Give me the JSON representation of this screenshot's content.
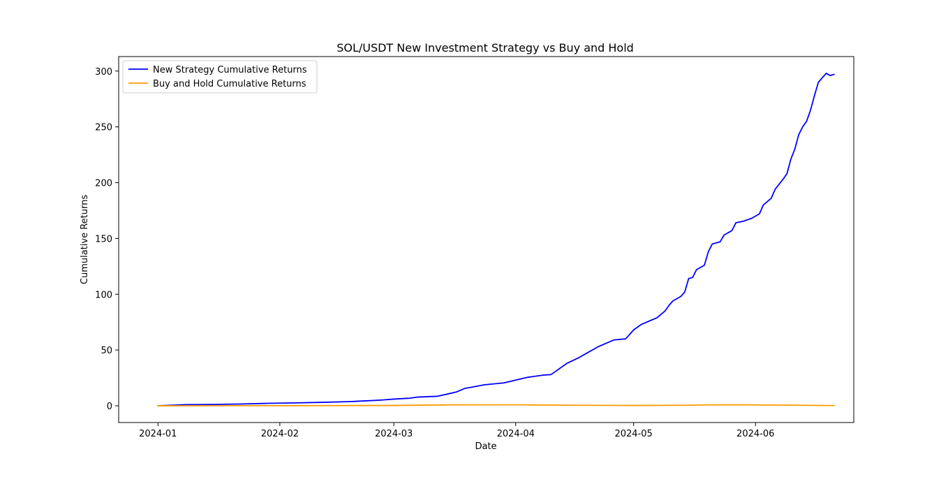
{
  "chart_data": {
    "type": "line",
    "title": "SOL/USDT New Investment Strategy vs Buy and Hold",
    "xlabel": "Date",
    "ylabel": "Cumulative Returns",
    "x_axis": {
      "type": "date",
      "range": [
        "2023-12-22",
        "2024-06-26"
      ],
      "ticks": [
        "2024-01-01",
        "2024-02-01",
        "2024-03-01",
        "2024-04-01",
        "2024-05-01",
        "2024-06-01"
      ],
      "tick_labels": [
        "2024-01",
        "2024-02",
        "2024-03",
        "2024-04",
        "2024-05",
        "2024-06"
      ]
    },
    "y_axis": {
      "range": [
        -15,
        313
      ],
      "ticks": [
        0,
        50,
        100,
        150,
        200,
        250,
        300
      ],
      "tick_labels": [
        "0",
        "50",
        "100",
        "150",
        "200",
        "250",
        "300"
      ]
    },
    "grid": false,
    "legend_position": "top-left",
    "colors": {
      "New Strategy Cumulative Returns": "#0000ff",
      "Buy and Hold Cumulative Returns": "#ff9900"
    },
    "series": [
      {
        "name": "New Strategy Cumulative Returns",
        "color": "#0000ff",
        "points": [
          [
            "2024-01-01",
            0.0
          ],
          [
            "2024-01-08",
            1.0
          ],
          [
            "2024-01-15",
            1.2
          ],
          [
            "2024-01-22",
            1.6
          ],
          [
            "2024-01-29",
            2.2
          ],
          [
            "2024-02-05",
            2.6
          ],
          [
            "2024-02-12",
            3.1
          ],
          [
            "2024-02-19",
            3.8
          ],
          [
            "2024-02-24",
            4.6
          ],
          [
            "2024-02-27",
            5.2
          ],
          [
            "2024-03-01",
            6.0
          ],
          [
            "2024-03-05",
            6.8
          ],
          [
            "2024-03-07",
            7.8
          ],
          [
            "2024-03-12",
            8.5
          ],
          [
            "2024-03-14",
            10.0
          ],
          [
            "2024-03-17",
            12.5
          ],
          [
            "2024-03-19",
            15.5
          ],
          [
            "2024-03-22",
            17.5
          ],
          [
            "2024-03-24",
            18.8
          ],
          [
            "2024-03-29",
            20.5
          ],
          [
            "2024-04-01",
            23.0
          ],
          [
            "2024-04-04",
            25.5
          ],
          [
            "2024-04-08",
            27.5
          ],
          [
            "2024-04-10",
            28.0
          ],
          [
            "2024-04-14",
            38.0
          ],
          [
            "2024-04-17",
            43.0
          ],
          [
            "2024-04-19",
            47.0
          ],
          [
            "2024-04-22",
            53.0
          ],
          [
            "2024-04-24",
            56.0
          ],
          [
            "2024-04-26",
            59.0
          ],
          [
            "2024-04-29",
            60.0
          ],
          [
            "2024-05-01",
            68.0
          ],
          [
            "2024-05-03",
            73.0
          ],
          [
            "2024-05-05",
            76.0
          ],
          [
            "2024-05-07",
            79.0
          ],
          [
            "2024-05-09",
            85.0
          ],
          [
            "2024-05-10",
            90.0
          ],
          [
            "2024-05-11",
            94.0
          ],
          [
            "2024-05-13",
            98.0
          ],
          [
            "2024-05-14",
            102.0
          ],
          [
            "2024-05-15",
            114.0
          ],
          [
            "2024-05-16",
            115.0
          ],
          [
            "2024-05-17",
            122.0
          ],
          [
            "2024-05-19",
            126.0
          ],
          [
            "2024-05-20",
            138.0
          ],
          [
            "2024-05-21",
            145.0
          ],
          [
            "2024-05-23",
            147.0
          ],
          [
            "2024-05-24",
            153.0
          ],
          [
            "2024-05-26",
            157.0
          ],
          [
            "2024-05-27",
            164.0
          ],
          [
            "2024-05-29",
            165.5
          ],
          [
            "2024-05-31",
            168.0
          ],
          [
            "2024-06-02",
            172.0
          ],
          [
            "2024-06-03",
            180.0
          ],
          [
            "2024-06-05",
            186.0
          ],
          [
            "2024-06-06",
            194.0
          ],
          [
            "2024-06-08",
            203.0
          ],
          [
            "2024-06-09",
            208.0
          ],
          [
            "2024-06-10",
            221.0
          ],
          [
            "2024-06-11",
            230.0
          ],
          [
            "2024-06-12",
            243.0
          ],
          [
            "2024-06-13",
            250.0
          ],
          [
            "2024-06-14",
            255.0
          ],
          [
            "2024-06-15",
            265.0
          ],
          [
            "2024-06-16",
            278.0
          ],
          [
            "2024-06-17",
            290.0
          ],
          [
            "2024-06-19",
            298.0
          ],
          [
            "2024-06-20",
            296.0
          ],
          [
            "2024-06-21",
            297.0
          ]
        ]
      },
      {
        "name": "Buy and Hold Cumulative Returns",
        "color": "#ff9900",
        "points": [
          [
            "2024-01-01",
            0.0
          ],
          [
            "2024-01-15",
            0.1
          ],
          [
            "2024-02-01",
            0.1
          ],
          [
            "2024-02-15",
            0.2
          ],
          [
            "2024-03-01",
            0.3
          ],
          [
            "2024-03-15",
            0.8
          ],
          [
            "2024-04-01",
            0.9
          ],
          [
            "2024-04-15",
            0.5
          ],
          [
            "2024-05-01",
            0.3
          ],
          [
            "2024-05-15",
            0.5
          ],
          [
            "2024-05-20",
            0.8
          ],
          [
            "2024-06-01",
            0.8
          ],
          [
            "2024-06-15",
            0.4
          ],
          [
            "2024-06-21",
            0.2
          ]
        ]
      }
    ]
  }
}
